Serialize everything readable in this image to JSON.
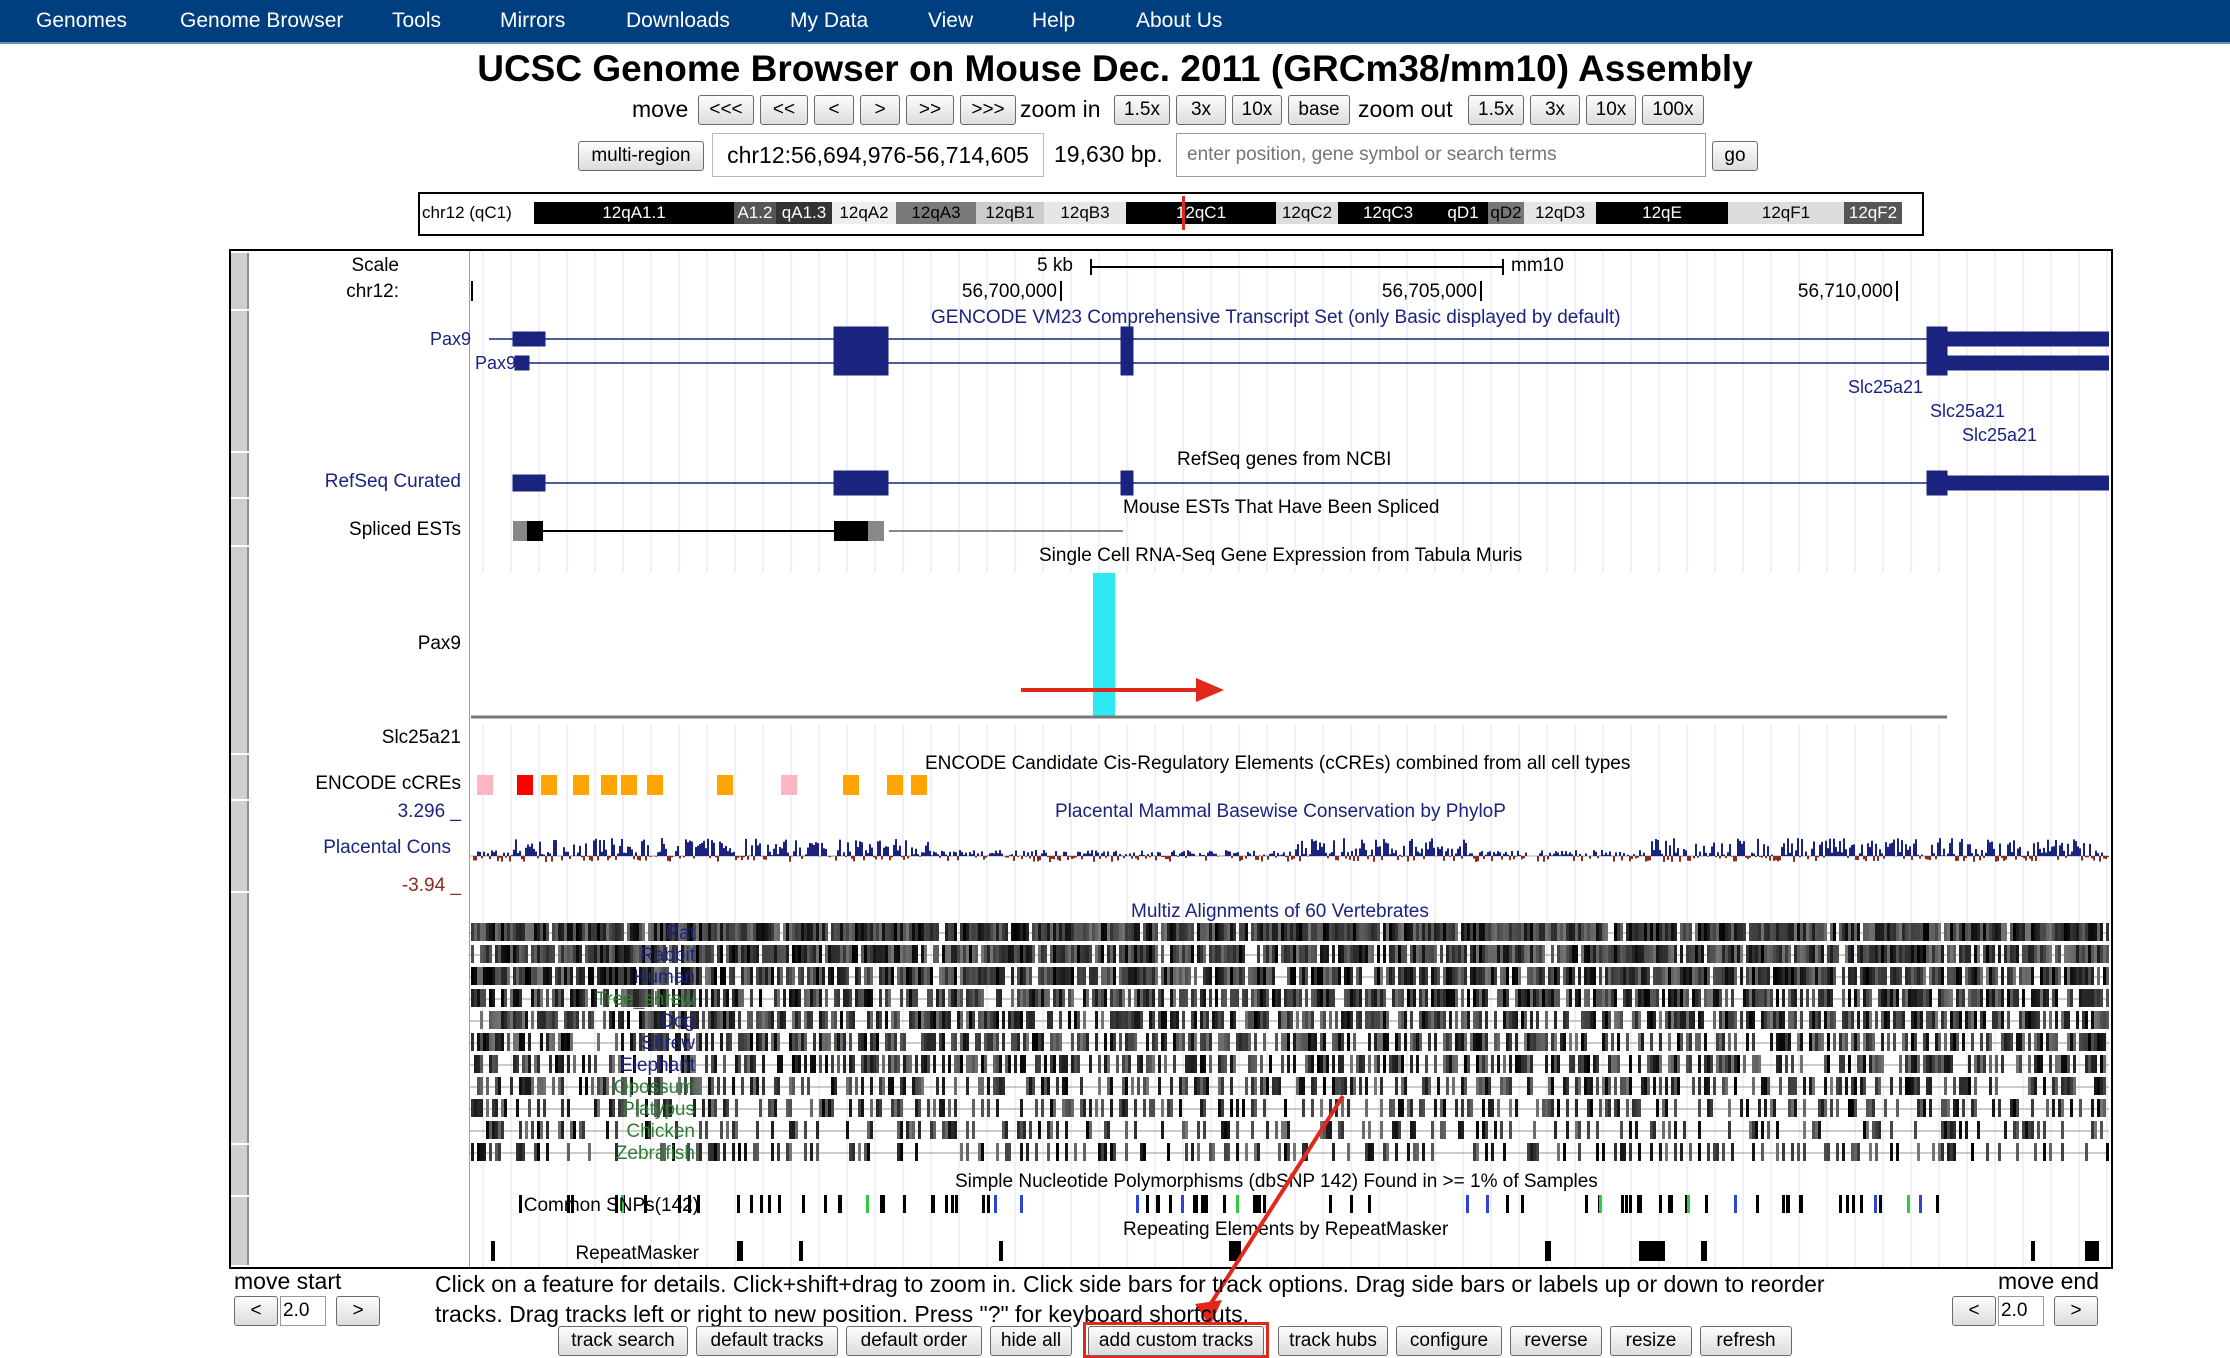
{
  "nav": {
    "items": [
      "Genomes",
      "Genome Browser",
      "Tools",
      "Mirrors",
      "Downloads",
      "My Data",
      "View",
      "Help",
      "About Us"
    ]
  },
  "title": "UCSC Genome Browser on Mouse Dec. 2011 (GRCm38/mm10) Assembly",
  "move": {
    "label": "move",
    "buttons": [
      "<<<",
      "<<",
      "<",
      ">",
      ">>",
      ">>>"
    ]
  },
  "zoom_in": {
    "label": "zoom in",
    "buttons": [
      "1.5x",
      "3x",
      "10x",
      "base"
    ]
  },
  "zoom_out": {
    "label": "zoom out",
    "buttons": [
      "1.5x",
      "3x",
      "10x",
      "100x"
    ]
  },
  "position": {
    "multi_region": "multi-region",
    "value": "chr12:56,694,976-56,714,605",
    "size": "19,630 bp.",
    "search_placeholder": "enter position, gene symbol or search terms",
    "go": "go"
  },
  "ideogram": {
    "chrom_label": "chr12 (qC1)",
    "bands": [
      "12qA1.1",
      "A1.2",
      "qA1.3",
      "12qA2",
      "12qA3",
      "12qB1",
      "12qB3",
      "12qC1",
      "12qC2",
      "12qC3",
      "qD1",
      "qD2",
      "12qD3",
      "12qE",
      "12qF1",
      "12qF2"
    ]
  },
  "ruler": {
    "scale_label": "Scale",
    "chrom_label": "chr12:",
    "scale_bar": "5 kb",
    "assembly": "mm10",
    "positions": [
      "56,700,000",
      "56,705,000",
      "56,710,000"
    ]
  },
  "tracks": {
    "gencode": {
      "title": "GENCODE VM23 Comprehensive Transcript Set (only Basic displayed by default)",
      "genes": [
        "Pax9",
        "Pax9",
        "Slc25a21",
        "Slc25a21",
        "Slc25a21"
      ]
    },
    "refseq": {
      "label": "RefSeq Curated",
      "title": "RefSeq genes from NCBI"
    },
    "ests": {
      "label": "Spliced ESTs",
      "title": "Mouse ESTs That Have Been Spliced"
    },
    "scrna": {
      "title": "Single Cell RNA-Seq Gene Expression from Tabula Muris",
      "genes": [
        "Pax9",
        "Slc25a21"
      ]
    },
    "ccre": {
      "label": "ENCODE cCREs",
      "title": "ENCODE Candidate Cis-Regulatory Elements (cCREs) combined from all cell types"
    },
    "cons": {
      "label": "Placental Cons",
      "title": "Placental Mammal Basewise Conservation by PhyloP",
      "max": "3.296 _",
      "min": "-3.94 _"
    },
    "multiz": {
      "title": "Multiz Alignments of 60 Vertebrates",
      "species": [
        "Rat",
        "Rabbit",
        "Human",
        "Tree_shrew",
        "Dog",
        "Shrew",
        "Elephant",
        "Opossum",
        "Platypus",
        "Chicken",
        "Zebrafish"
      ]
    },
    "snp": {
      "label": "Common SNPs(142)",
      "title": "Simple Nucleotide Polymorphisms (dbSNP 142) Found in >= 1% of Samples"
    },
    "rmsk": {
      "label": "RepeatMasker",
      "title": "Repeating Elements by RepeatMasker"
    }
  },
  "bottom": {
    "move_start": "move start",
    "move_end": "move end",
    "left_arrow": "<",
    "right_arrow": ">",
    "start_value": "2.0",
    "end_value": "2.0",
    "help_text": "Click on a feature for details. Click+shift+drag to zoom in. Click side bars for track options. Drag side bars or labels up or down to reorder tracks. Drag tracks left or right to new position. Press \"?\" for keyboard shortcuts.",
    "buttons": [
      "track search",
      "default tracks",
      "default order",
      "hide all",
      "add custom tracks",
      "track hubs",
      "configure",
      "reverse",
      "resize",
      "refresh"
    ]
  },
  "colors": {
    "nav_bg": "#003f7f",
    "gene_navy": "#1a237e",
    "highlight_red": "#e0291c",
    "ccre_orange": "#ffa500",
    "ccre_red": "#ff0000",
    "ccre_pink": "#ffb6c1",
    "scrna_cyan": "#2ee8f2",
    "cons_pos": "#1a237e",
    "cons_neg": "#8b2a1f",
    "multiz_green": "#2e7d32"
  }
}
